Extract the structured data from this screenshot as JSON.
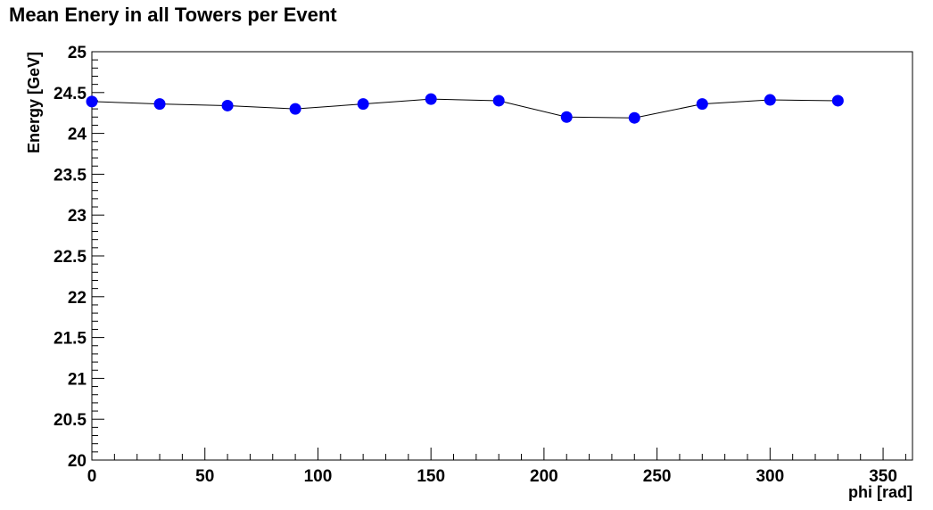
{
  "chart_data": {
    "type": "line",
    "title": "Mean Enery in all Towers per Event",
    "xlabel": "phi [rad]",
    "ylabel": "Energy [GeV]",
    "xlim": [
      0,
      363
    ],
    "ylim": [
      20,
      25
    ],
    "x_ticks": [
      0,
      50,
      100,
      150,
      200,
      250,
      300,
      350
    ],
    "y_ticks": [
      20,
      20.5,
      21,
      21.5,
      22,
      22.5,
      23,
      23.5,
      24,
      24.5,
      25
    ],
    "grid": false,
    "series": [
      {
        "x": [
          0,
          30,
          60,
          90,
          120,
          150,
          180,
          210,
          240,
          270,
          300,
          330
        ],
        "values": [
          24.39,
          24.36,
          24.34,
          24.3,
          24.36,
          24.42,
          24.4,
          24.2,
          24.19,
          24.36,
          24.41,
          24.4
        ],
        "color": "#0000ff",
        "line_color": "#000000"
      }
    ]
  }
}
